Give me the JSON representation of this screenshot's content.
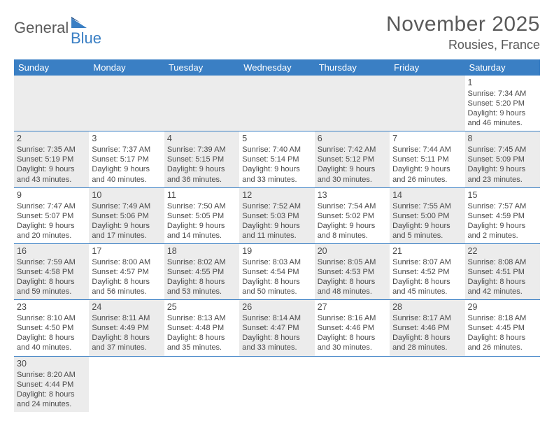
{
  "logo": {
    "part1": "General",
    "part2": "Blue"
  },
  "title": "November 2025",
  "location": "Rousies, France",
  "colors": {
    "header_bg": "#3a7fc4",
    "header_text": "#ffffff",
    "alt_row_bg": "#ececec",
    "text": "#4a4a4a",
    "border": "#3a7fc4"
  },
  "day_headers": [
    "Sunday",
    "Monday",
    "Tuesday",
    "Wednesday",
    "Thursday",
    "Friday",
    "Saturday"
  ],
  "weeks": [
    [
      {
        "day": "",
        "sunrise": "",
        "sunset": "",
        "daylight1": "",
        "daylight2": "",
        "alt": true
      },
      {
        "day": "",
        "sunrise": "",
        "sunset": "",
        "daylight1": "",
        "daylight2": "",
        "alt": true
      },
      {
        "day": "",
        "sunrise": "",
        "sunset": "",
        "daylight1": "",
        "daylight2": "",
        "alt": true
      },
      {
        "day": "",
        "sunrise": "",
        "sunset": "",
        "daylight1": "",
        "daylight2": "",
        "alt": true
      },
      {
        "day": "",
        "sunrise": "",
        "sunset": "",
        "daylight1": "",
        "daylight2": "",
        "alt": true
      },
      {
        "day": "",
        "sunrise": "",
        "sunset": "",
        "daylight1": "",
        "daylight2": "",
        "alt": true
      },
      {
        "day": "1",
        "sunrise": "Sunrise: 7:34 AM",
        "sunset": "Sunset: 5:20 PM",
        "daylight1": "Daylight: 9 hours",
        "daylight2": "and 46 minutes.",
        "alt": false
      }
    ],
    [
      {
        "day": "2",
        "sunrise": "Sunrise: 7:35 AM",
        "sunset": "Sunset: 5:19 PM",
        "daylight1": "Daylight: 9 hours",
        "daylight2": "and 43 minutes.",
        "alt": true
      },
      {
        "day": "3",
        "sunrise": "Sunrise: 7:37 AM",
        "sunset": "Sunset: 5:17 PM",
        "daylight1": "Daylight: 9 hours",
        "daylight2": "and 40 minutes.",
        "alt": false
      },
      {
        "day": "4",
        "sunrise": "Sunrise: 7:39 AM",
        "sunset": "Sunset: 5:15 PM",
        "daylight1": "Daylight: 9 hours",
        "daylight2": "and 36 minutes.",
        "alt": true
      },
      {
        "day": "5",
        "sunrise": "Sunrise: 7:40 AM",
        "sunset": "Sunset: 5:14 PM",
        "daylight1": "Daylight: 9 hours",
        "daylight2": "and 33 minutes.",
        "alt": false
      },
      {
        "day": "6",
        "sunrise": "Sunrise: 7:42 AM",
        "sunset": "Sunset: 5:12 PM",
        "daylight1": "Daylight: 9 hours",
        "daylight2": "and 30 minutes.",
        "alt": true
      },
      {
        "day": "7",
        "sunrise": "Sunrise: 7:44 AM",
        "sunset": "Sunset: 5:11 PM",
        "daylight1": "Daylight: 9 hours",
        "daylight2": "and 26 minutes.",
        "alt": false
      },
      {
        "day": "8",
        "sunrise": "Sunrise: 7:45 AM",
        "sunset": "Sunset: 5:09 PM",
        "daylight1": "Daylight: 9 hours",
        "daylight2": "and 23 minutes.",
        "alt": true
      }
    ],
    [
      {
        "day": "9",
        "sunrise": "Sunrise: 7:47 AM",
        "sunset": "Sunset: 5:07 PM",
        "daylight1": "Daylight: 9 hours",
        "daylight2": "and 20 minutes.",
        "alt": false
      },
      {
        "day": "10",
        "sunrise": "Sunrise: 7:49 AM",
        "sunset": "Sunset: 5:06 PM",
        "daylight1": "Daylight: 9 hours",
        "daylight2": "and 17 minutes.",
        "alt": true
      },
      {
        "day": "11",
        "sunrise": "Sunrise: 7:50 AM",
        "sunset": "Sunset: 5:05 PM",
        "daylight1": "Daylight: 9 hours",
        "daylight2": "and 14 minutes.",
        "alt": false
      },
      {
        "day": "12",
        "sunrise": "Sunrise: 7:52 AM",
        "sunset": "Sunset: 5:03 PM",
        "daylight1": "Daylight: 9 hours",
        "daylight2": "and 11 minutes.",
        "alt": true
      },
      {
        "day": "13",
        "sunrise": "Sunrise: 7:54 AM",
        "sunset": "Sunset: 5:02 PM",
        "daylight1": "Daylight: 9 hours",
        "daylight2": "and 8 minutes.",
        "alt": false
      },
      {
        "day": "14",
        "sunrise": "Sunrise: 7:55 AM",
        "sunset": "Sunset: 5:00 PM",
        "daylight1": "Daylight: 9 hours",
        "daylight2": "and 5 minutes.",
        "alt": true
      },
      {
        "day": "15",
        "sunrise": "Sunrise: 7:57 AM",
        "sunset": "Sunset: 4:59 PM",
        "daylight1": "Daylight: 9 hours",
        "daylight2": "and 2 minutes.",
        "alt": false
      }
    ],
    [
      {
        "day": "16",
        "sunrise": "Sunrise: 7:59 AM",
        "sunset": "Sunset: 4:58 PM",
        "daylight1": "Daylight: 8 hours",
        "daylight2": "and 59 minutes.",
        "alt": true
      },
      {
        "day": "17",
        "sunrise": "Sunrise: 8:00 AM",
        "sunset": "Sunset: 4:57 PM",
        "daylight1": "Daylight: 8 hours",
        "daylight2": "and 56 minutes.",
        "alt": false
      },
      {
        "day": "18",
        "sunrise": "Sunrise: 8:02 AM",
        "sunset": "Sunset: 4:55 PM",
        "daylight1": "Daylight: 8 hours",
        "daylight2": "and 53 minutes.",
        "alt": true
      },
      {
        "day": "19",
        "sunrise": "Sunrise: 8:03 AM",
        "sunset": "Sunset: 4:54 PM",
        "daylight1": "Daylight: 8 hours",
        "daylight2": "and 50 minutes.",
        "alt": false
      },
      {
        "day": "20",
        "sunrise": "Sunrise: 8:05 AM",
        "sunset": "Sunset: 4:53 PM",
        "daylight1": "Daylight: 8 hours",
        "daylight2": "and 48 minutes.",
        "alt": true
      },
      {
        "day": "21",
        "sunrise": "Sunrise: 8:07 AM",
        "sunset": "Sunset: 4:52 PM",
        "daylight1": "Daylight: 8 hours",
        "daylight2": "and 45 minutes.",
        "alt": false
      },
      {
        "day": "22",
        "sunrise": "Sunrise: 8:08 AM",
        "sunset": "Sunset: 4:51 PM",
        "daylight1": "Daylight: 8 hours",
        "daylight2": "and 42 minutes.",
        "alt": true
      }
    ],
    [
      {
        "day": "23",
        "sunrise": "Sunrise: 8:10 AM",
        "sunset": "Sunset: 4:50 PM",
        "daylight1": "Daylight: 8 hours",
        "daylight2": "and 40 minutes.",
        "alt": false
      },
      {
        "day": "24",
        "sunrise": "Sunrise: 8:11 AM",
        "sunset": "Sunset: 4:49 PM",
        "daylight1": "Daylight: 8 hours",
        "daylight2": "and 37 minutes.",
        "alt": true
      },
      {
        "day": "25",
        "sunrise": "Sunrise: 8:13 AM",
        "sunset": "Sunset: 4:48 PM",
        "daylight1": "Daylight: 8 hours",
        "daylight2": "and 35 minutes.",
        "alt": false
      },
      {
        "day": "26",
        "sunrise": "Sunrise: 8:14 AM",
        "sunset": "Sunset: 4:47 PM",
        "daylight1": "Daylight: 8 hours",
        "daylight2": "and 33 minutes.",
        "alt": true
      },
      {
        "day": "27",
        "sunrise": "Sunrise: 8:16 AM",
        "sunset": "Sunset: 4:46 PM",
        "daylight1": "Daylight: 8 hours",
        "daylight2": "and 30 minutes.",
        "alt": false
      },
      {
        "day": "28",
        "sunrise": "Sunrise: 8:17 AM",
        "sunset": "Sunset: 4:46 PM",
        "daylight1": "Daylight: 8 hours",
        "daylight2": "and 28 minutes.",
        "alt": true
      },
      {
        "day": "29",
        "sunrise": "Sunrise: 8:18 AM",
        "sunset": "Sunset: 4:45 PM",
        "daylight1": "Daylight: 8 hours",
        "daylight2": "and 26 minutes.",
        "alt": false
      }
    ],
    [
      {
        "day": "30",
        "sunrise": "Sunrise: 8:20 AM",
        "sunset": "Sunset: 4:44 PM",
        "daylight1": "Daylight: 8 hours",
        "daylight2": "and 24 minutes.",
        "alt": true
      },
      {
        "day": "",
        "sunrise": "",
        "sunset": "",
        "daylight1": "",
        "daylight2": "",
        "alt": false
      },
      {
        "day": "",
        "sunrise": "",
        "sunset": "",
        "daylight1": "",
        "daylight2": "",
        "alt": false
      },
      {
        "day": "",
        "sunrise": "",
        "sunset": "",
        "daylight1": "",
        "daylight2": "",
        "alt": false
      },
      {
        "day": "",
        "sunrise": "",
        "sunset": "",
        "daylight1": "",
        "daylight2": "",
        "alt": false
      },
      {
        "day": "",
        "sunrise": "",
        "sunset": "",
        "daylight1": "",
        "daylight2": "",
        "alt": false
      },
      {
        "day": "",
        "sunrise": "",
        "sunset": "",
        "daylight1": "",
        "daylight2": "",
        "alt": false
      }
    ]
  ]
}
